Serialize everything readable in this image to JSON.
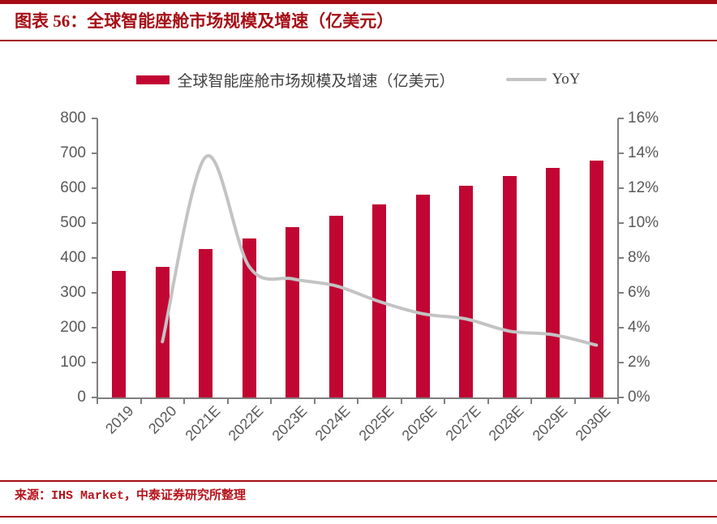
{
  "header": {
    "title": "图表 56：全球智能座舱市场规模及增速（亿美元）"
  },
  "source": {
    "text": "来源：IHS Market，中泰证券研究所整理"
  },
  "colors": {
    "dark_red": "#A50D15",
    "bar_red": "#C10633",
    "yoy_line_gray": "#C3C3C3",
    "axis_gray": "#7F7F7F",
    "tick_text_gray": "#595959",
    "legend_text": "#3F3F3F",
    "source_red": "#B5121A"
  },
  "chart_data": {
    "type": "bar",
    "subtype": "bar+line dual-axis combo",
    "title": "全球智能座舱市场规模及增速（亿美元）",
    "categories": [
      "2019",
      "2020",
      "2021E",
      "2022E",
      "2023E",
      "2024E",
      "2025E",
      "2026E",
      "2027E",
      "2028E",
      "2029E",
      "2030E"
    ],
    "series": [
      {
        "name": "全球智能座舱市场规模及增速（亿美元）",
        "type": "bar",
        "axis": "left",
        "color": "#C10633",
        "values": [
          363,
          374,
          425,
          456,
          488,
          521,
          553,
          581,
          608,
          634,
          658,
          678
        ]
      },
      {
        "name": "YoY",
        "type": "line",
        "axis": "right",
        "unit": "%",
        "color": "#C3C3C3",
        "values": [
          null,
          3.2,
          13.8,
          7.5,
          6.8,
          6.4,
          5.5,
          4.8,
          4.5,
          3.8,
          3.6,
          3.0
        ]
      }
    ],
    "left_axis": {
      "min": 0,
      "max": 800,
      "step": 100,
      "tick_labels_top_down": [
        "800",
        "700",
        "600",
        "500",
        "400",
        "300",
        "200",
        "100",
        "0"
      ]
    },
    "right_axis": {
      "min": 0,
      "max": 16,
      "step": 2,
      "unit": "%",
      "tick_labels_top_down": [
        "16%",
        "14%",
        "12%",
        "10%",
        "8%",
        "6%",
        "4%",
        "2%",
        "0%"
      ]
    },
    "grid": false,
    "legend_position": "top"
  }
}
